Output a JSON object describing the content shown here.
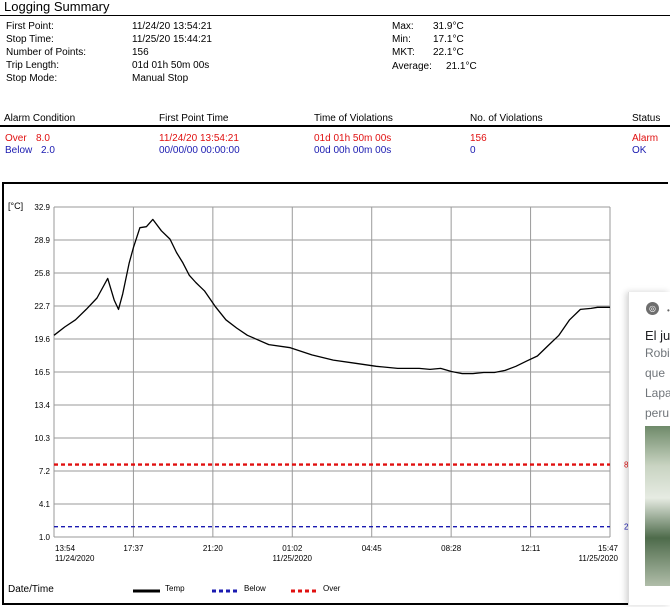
{
  "summary": {
    "title": "Logging Summary",
    "fields_left": [
      {
        "label": "First Point:",
        "value": "11/24/20 13:54:21"
      },
      {
        "label": "Stop Time:",
        "value": "11/25/20 15:44:21"
      },
      {
        "label": "Number of Points:",
        "value": "156"
      },
      {
        "label": "Trip Length:",
        "value": "01d 01h 50m 00s"
      },
      {
        "label": "Stop Mode:",
        "value": "Manual Stop"
      }
    ],
    "fields_right": [
      {
        "label": "Max:",
        "value": "31.9°C"
      },
      {
        "label": "Min:",
        "value": "17.1°C"
      },
      {
        "label": "MKT:",
        "value": "22.1°C"
      },
      {
        "label": "Average:",
        "value": "21.1°C"
      }
    ]
  },
  "alarms": {
    "headers": [
      "Alarm Condition",
      "First Point Time",
      "Time of Violations",
      "No. of Violations",
      "Status"
    ],
    "rows": [
      {
        "condition": "Over",
        "threshold": "8.0",
        "first_point": "11/24/20 13:54:21",
        "time_violations": "01d 01h 50m 00s",
        "count": "156",
        "status": "Alarm",
        "color": "#e01010"
      },
      {
        "condition": "Below",
        "threshold": "2.0",
        "first_point": "00/00/00 00:00:00",
        "time_violations": "00d 00h 00m 00s",
        "count": "0",
        "status": "OK",
        "color": "#1a1ab0"
      }
    ]
  },
  "chart": {
    "unit_label": "[°C]",
    "xlabel": "Date/Time",
    "legend": [
      {
        "name": "Temp",
        "color": "#000000",
        "style": "solid"
      },
      {
        "name": "Below",
        "color": "#1a1ab0",
        "style": "dashed"
      },
      {
        "name": "Over",
        "color": "#e01010",
        "style": "dashed"
      }
    ],
    "right_edge_marks": [
      {
        "text": "8",
        "color": "#e01010"
      },
      {
        "text": "2",
        "color": "#1a1ab0"
      }
    ]
  },
  "chart_data": {
    "type": "line",
    "title": "",
    "xlabel": "Date/Time",
    "ylabel": "[°C]",
    "ylim": [
      1.0,
      32.9
    ],
    "yticks": [
      "32.9",
      "28.9",
      "25.8",
      "22.7",
      "19.6",
      "16.5",
      "13.4",
      "10.3",
      "7.2",
      "4.1",
      "1.0"
    ],
    "xticks": [
      {
        "time": "13:54",
        "date": "11/24/2020"
      },
      {
        "time": "17:37",
        "date": ""
      },
      {
        "time": "21:20",
        "date": ""
      },
      {
        "time": "01:02",
        "date": "11/25/2020"
      },
      {
        "time": "04:45",
        "date": ""
      },
      {
        "time": "08:28",
        "date": ""
      },
      {
        "time": "12:11",
        "date": ""
      },
      {
        "time": "15:47",
        "date": "11/25/2020"
      }
    ],
    "grid": true,
    "thresholds": [
      {
        "name": "Over",
        "value": 8.0,
        "color": "#e01010"
      },
      {
        "name": "Below",
        "value": 2.0,
        "color": "#1a1ab0"
      }
    ],
    "series": [
      {
        "name": "Temp",
        "color": "#000000",
        "x_hours": [
          0,
          0.5,
          1.0,
          1.5,
          2.0,
          2.5,
          2.8,
          3.0,
          3.2,
          3.5,
          3.7,
          4.0,
          4.3,
          4.6,
          5.0,
          5.4,
          5.7,
          6.0,
          6.3,
          6.6,
          6.8,
          7.0,
          7.5,
          8.0,
          8.5,
          9.0,
          10.0,
          11.0,
          12.0,
          13.0,
          14.0,
          15.0,
          16.0,
          17.0,
          17.5,
          18.0,
          18.5,
          19.0,
          19.5,
          20.0,
          20.5,
          21.0,
          21.5,
          22.0,
          22.5,
          23.0,
          23.5,
          24.0,
          24.5,
          25.0,
          25.3,
          25.7,
          25.88
        ],
        "values": [
          20.5,
          21.3,
          22.0,
          23.0,
          24.1,
          26.0,
          23.9,
          23.0,
          24.5,
          27.5,
          29.0,
          30.9,
          31.0,
          31.7,
          30.6,
          29.8,
          28.5,
          27.5,
          26.3,
          25.6,
          25.2,
          24.8,
          23.3,
          22.0,
          21.2,
          20.5,
          19.6,
          19.3,
          18.6,
          18.1,
          17.8,
          17.5,
          17.3,
          17.3,
          17.2,
          17.3,
          17.0,
          16.8,
          16.8,
          16.9,
          16.9,
          17.1,
          17.5,
          18.0,
          18.5,
          19.5,
          20.5,
          22.0,
          23.0,
          23.1,
          23.2,
          23.2,
          23.2
        ]
      }
    ]
  }
}
